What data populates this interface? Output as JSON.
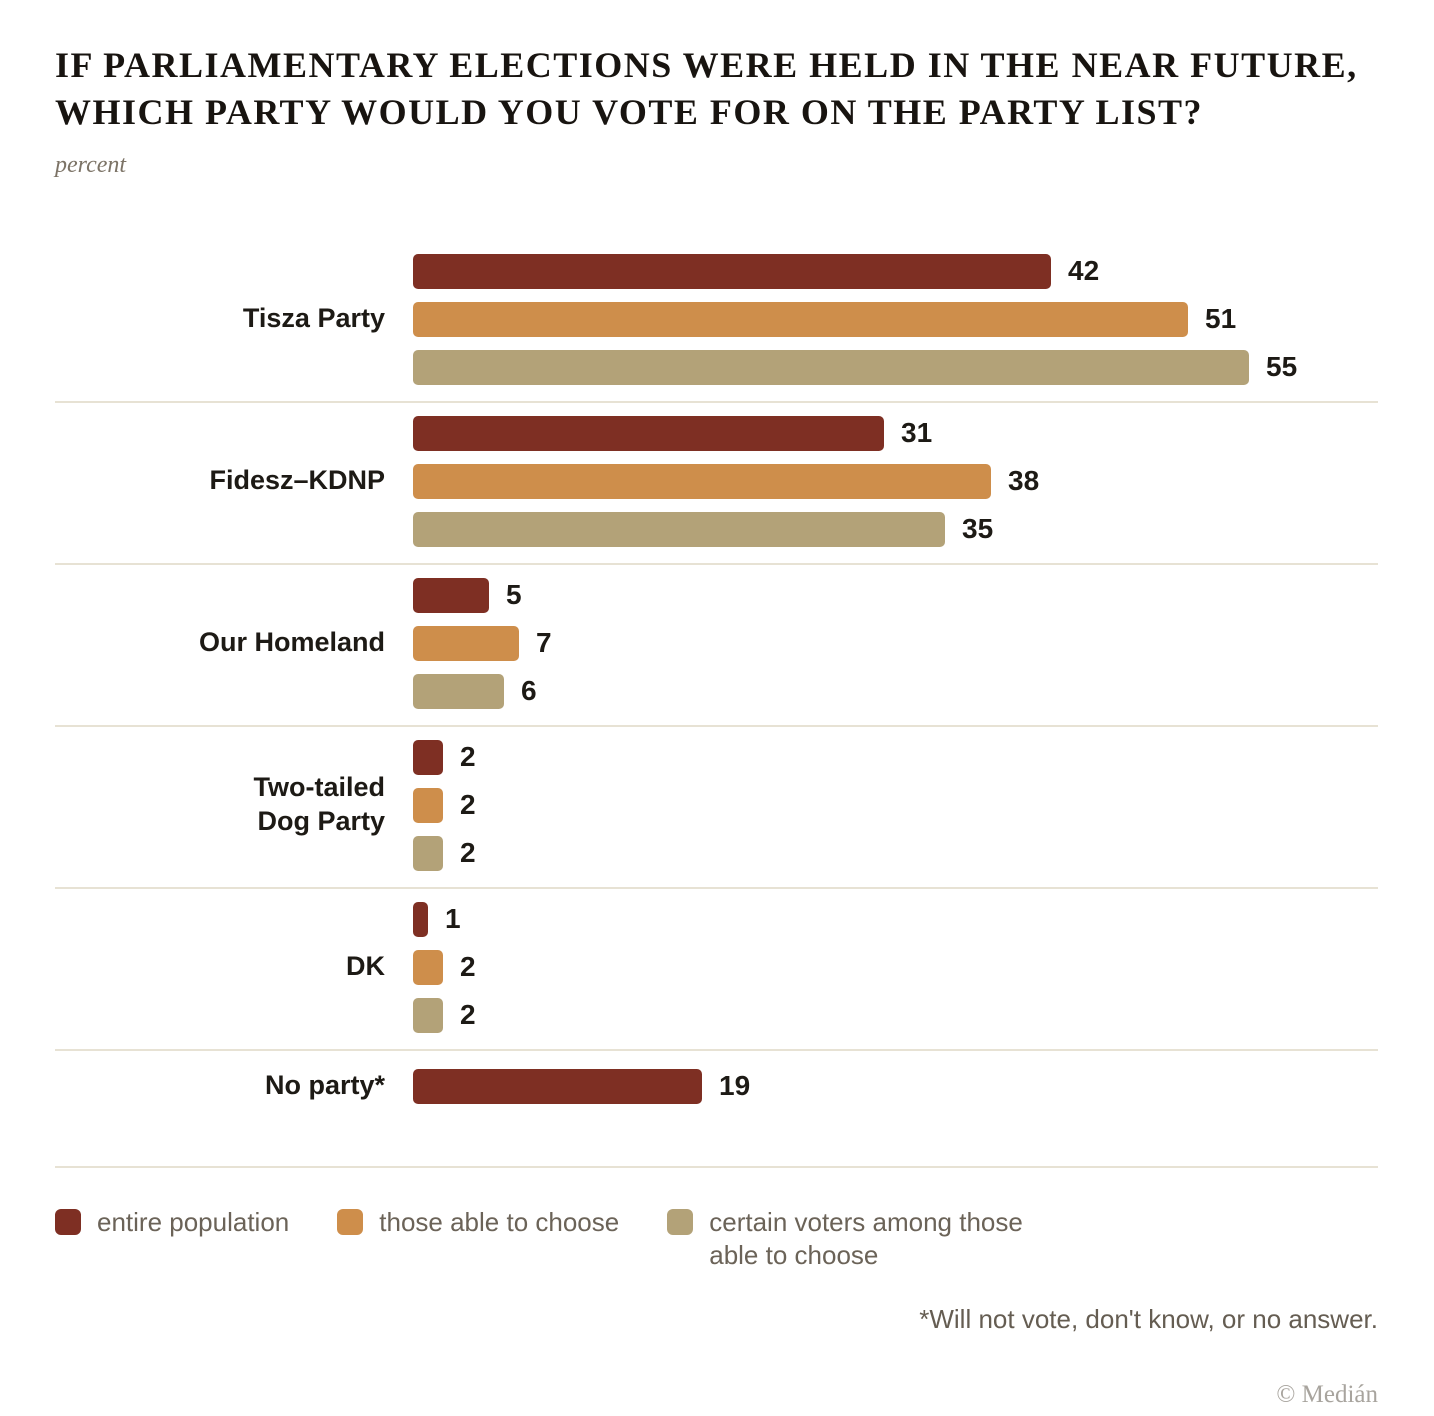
{
  "header": {
    "title_line1": "IF PARLIAMENTARY ELECTIONS WERE HELD IN THE NEAR FUTURE,",
    "title_line2": "WHICH PARTY WOULD YOU VOTE FOR ON THE PARTY LIST?",
    "subtitle": "percent"
  },
  "footer": {
    "footnote": "*Will not vote, don't know, or no answer.",
    "copyright": "© Medián"
  },
  "colors": {
    "entire_population": "#7E2F23",
    "those_able_to_choose": "#CE8E4B",
    "certain_voters": "#B3A278",
    "separator": "#E7E2D4",
    "text_dark": "#1d1a15",
    "text_muted": "#6b6358"
  },
  "chart_data": {
    "type": "bar",
    "orientation": "horizontal",
    "title": "IF PARLIAMENTARY ELECTIONS WERE HELD IN THE NEAR FUTURE, WHICH PARTY WOULD YOU VOTE FOR ON THE PARTY LIST?",
    "unit_label": "percent",
    "categories": [
      "Tisza Party",
      "Fidesz–KDNP",
      "Our Homeland",
      "Two-tailed\nDog Party",
      "DK",
      "No party*"
    ],
    "series": [
      {
        "name": "entire population",
        "color": "#7E2F23",
        "values": [
          42,
          31,
          5,
          2,
          1,
          19
        ]
      },
      {
        "name": "those able to choose",
        "color": "#CE8E4B",
        "values": [
          51,
          38,
          7,
          2,
          2,
          null
        ]
      },
      {
        "name": "certain voters among those able to choose",
        "color": "#B3A278",
        "values": [
          55,
          35,
          6,
          2,
          2,
          null
        ]
      }
    ],
    "xlim": [
      0,
      55
    ],
    "grid": false,
    "value_labels": true,
    "legend_position": "bottom",
    "footnote": "*Will not vote, don't know, or no answer.",
    "source": "© Medián"
  }
}
